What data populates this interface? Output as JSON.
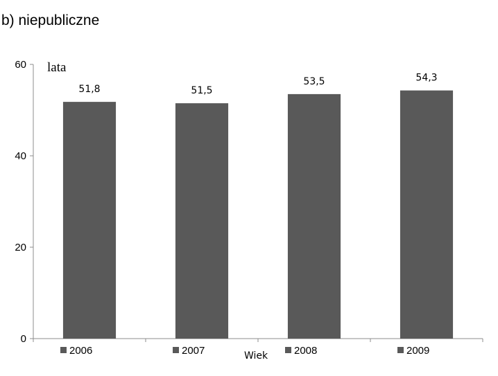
{
  "chart_data": {
    "type": "bar",
    "title": "b) niepubliczne",
    "ylabel": "lata",
    "xlabel": "Wiek",
    "ylim": [
      0,
      60
    ],
    "yticks": [
      0,
      20,
      40,
      60
    ],
    "categories": [
      "2006",
      "2007",
      "2008",
      "2009"
    ],
    "values": [
      51.8,
      51.5,
      53.5,
      54.3
    ],
    "data_labels": [
      "51,8",
      "51,5",
      "53,5",
      "54,3"
    ],
    "legend": [
      "2006",
      "2007",
      "2008",
      "2009"
    ],
    "legend_position": "bottom",
    "bar_color": "#595959",
    "grid": false
  }
}
